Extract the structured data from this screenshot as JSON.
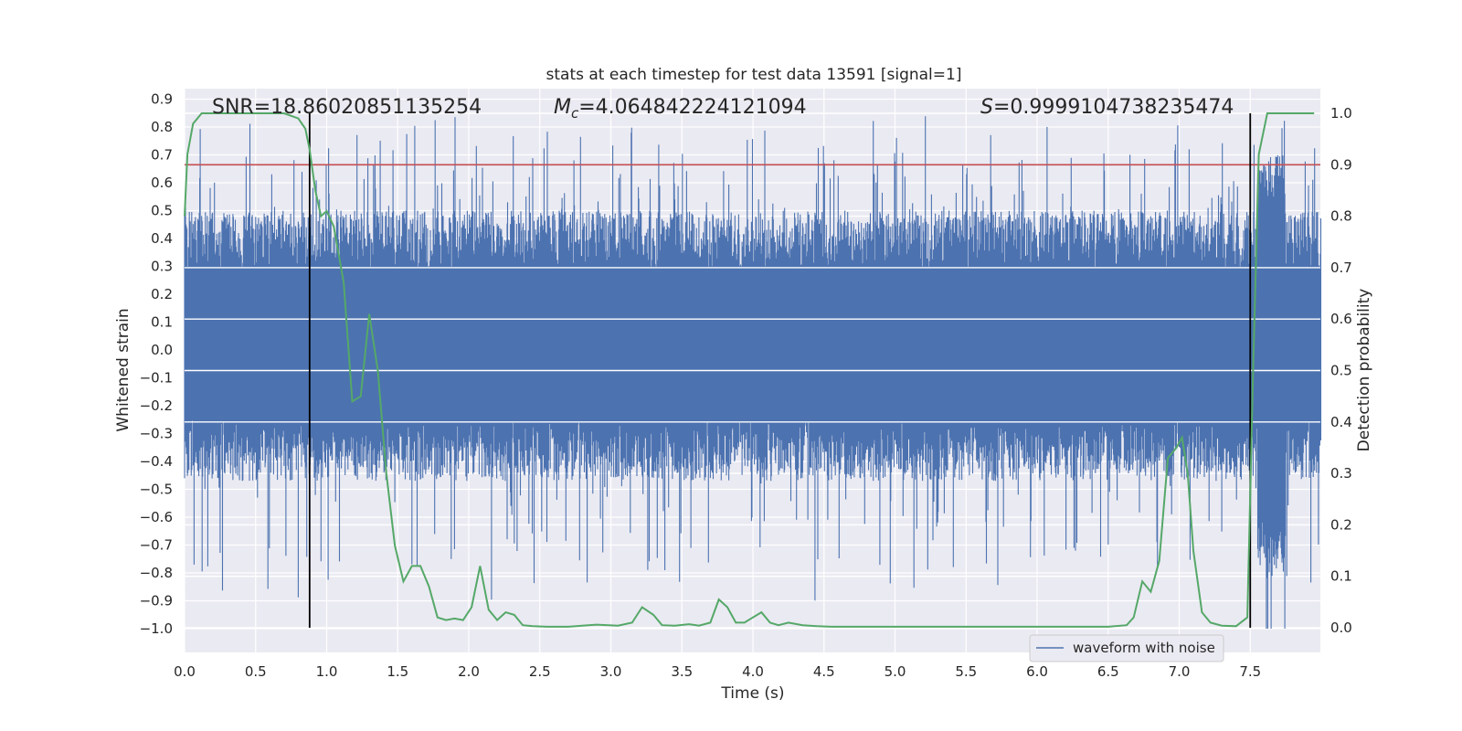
{
  "chart_data": {
    "type": "line",
    "title": "stats at each timestep for test data 13591 [signal=1]",
    "xlabel": "Time (s)",
    "ylabel": "Whitened strain",
    "y2label": "Detection probability",
    "xlim": [
      0.0,
      8.0
    ],
    "ylim": [
      -1.09,
      0.95
    ],
    "y2lim": [
      -0.05,
      1.05
    ],
    "x_ticks": [
      "0.0",
      "0.5",
      "1.0",
      "1.5",
      "2.0",
      "2.5",
      "3.0",
      "3.5",
      "4.0",
      "4.5",
      "5.0",
      "5.5",
      "6.0",
      "6.5",
      "7.0",
      "7.5"
    ],
    "y_ticks": [
      "0.9",
      "0.8",
      "0.7",
      "0.6",
      "0.5",
      "0.4",
      "0.3",
      "0.2",
      "0.1",
      "0.0",
      "−0.1",
      "−0.2",
      "−0.3",
      "−0.4",
      "−0.5",
      "−0.6",
      "−0.7",
      "−0.8",
      "−0.9",
      "−1.0"
    ],
    "y2_ticks": [
      "1.0",
      "0.9",
      "0.8",
      "0.7",
      "0.6",
      "0.5",
      "0.4",
      "0.3",
      "0.2",
      "0.1",
      "0.0"
    ],
    "annotations": {
      "snr": "SNR=18.86020851135254",
      "mc_symbol": "M",
      "mc_sub": "c",
      "mc_value": "=4.064842224121094",
      "s_symbol": "S",
      "s_value": "=0.9999104738235474"
    },
    "threshold": {
      "value": 0.9,
      "axis": "y2",
      "color": "#c44e52"
    },
    "vlines": [
      0.88,
      7.5
    ],
    "series": [
      {
        "name": "waveform with noise",
        "axis": "y",
        "color": "#4c72b0",
        "kind": "noise",
        "envelope_mid": 0.2,
        "envelope_peak": 0.85,
        "envelope_trough": -1.0
      },
      {
        "name": "detection probability",
        "axis": "y2",
        "color": "#55a868",
        "x": [
          0.0,
          0.02,
          0.06,
          0.12,
          0.2,
          0.3,
          0.5,
          0.7,
          0.8,
          0.85,
          0.88,
          0.92,
          0.96,
          1.0,
          1.05,
          1.12,
          1.18,
          1.24,
          1.3,
          1.36,
          1.42,
          1.48,
          1.54,
          1.6,
          1.66,
          1.72,
          1.78,
          1.84,
          1.9,
          1.96,
          2.02,
          2.08,
          2.14,
          2.2,
          2.26,
          2.32,
          2.38,
          2.45,
          2.55,
          2.7,
          2.9,
          3.05,
          3.15,
          3.22,
          3.3,
          3.36,
          3.45,
          3.55,
          3.62,
          3.7,
          3.76,
          3.82,
          3.88,
          3.94,
          4.0,
          4.06,
          4.12,
          4.18,
          4.25,
          4.35,
          4.45,
          4.55,
          4.7,
          4.9,
          5.2,
          5.6,
          6.0,
          6.3,
          6.5,
          6.63,
          6.68,
          6.74,
          6.8,
          6.86,
          6.92,
          6.98,
          7.02,
          7.06,
          7.1,
          7.16,
          7.22,
          7.3,
          7.4,
          7.48,
          7.52,
          7.56,
          7.62,
          7.7,
          7.8,
          7.95
        ],
        "y": [
          0.8,
          0.92,
          0.98,
          1.0,
          1.0,
          1.0,
          1.0,
          1.0,
          0.99,
          0.97,
          0.93,
          0.85,
          0.8,
          0.81,
          0.78,
          0.67,
          0.44,
          0.45,
          0.61,
          0.5,
          0.3,
          0.16,
          0.09,
          0.12,
          0.12,
          0.08,
          0.02,
          0.015,
          0.018,
          0.015,
          0.04,
          0.12,
          0.035,
          0.015,
          0.03,
          0.025,
          0.005,
          0.003,
          0.002,
          0.002,
          0.006,
          0.004,
          0.01,
          0.04,
          0.025,
          0.005,
          0.004,
          0.007,
          0.004,
          0.01,
          0.055,
          0.04,
          0.01,
          0.01,
          0.02,
          0.03,
          0.01,
          0.005,
          0.01,
          0.005,
          0.003,
          0.002,
          0.002,
          0.002,
          0.002,
          0.002,
          0.002,
          0.002,
          0.002,
          0.005,
          0.02,
          0.09,
          0.07,
          0.13,
          0.33,
          0.35,
          0.37,
          0.3,
          0.15,
          0.03,
          0.01,
          0.004,
          0.003,
          0.02,
          0.5,
          0.92,
          1.0,
          1.0,
          1.0,
          1.0
        ]
      }
    ],
    "legend": {
      "placement": "lower-right",
      "entries": [
        "waveform with noise"
      ]
    }
  }
}
